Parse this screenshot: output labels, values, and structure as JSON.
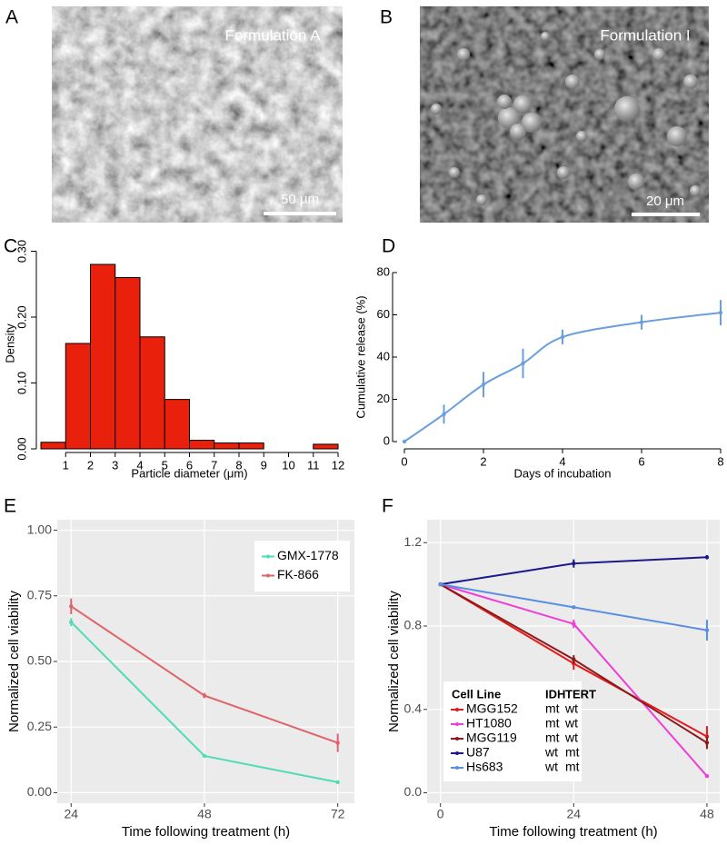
{
  "figures": [
    {
      "panel": "A",
      "label": "Formulation A",
      "scale_bar": "50 μm"
    },
    {
      "panel": "B",
      "label": "Formulation I",
      "scale_bar": "20 μm"
    }
  ],
  "chart_data": [
    {
      "panel": "C",
      "type": "histogram",
      "color": "#e8200c",
      "bins": [
        0,
        1,
        2,
        3,
        4,
        5,
        6,
        7,
        8,
        9,
        10,
        11,
        12
      ],
      "values": [
        0.01,
        0.16,
        0.28,
        0.26,
        0.17,
        0.075,
        0.013,
        0.009,
        0.009,
        0,
        0,
        0.007
      ],
      "xlim": [
        0,
        12
      ],
      "xticks": [
        1,
        2,
        3,
        4,
        5,
        6,
        7,
        8,
        9,
        10,
        11,
        12
      ],
      "ylim": [
        0,
        0.32
      ],
      "yticks": [
        {
          "value": 0,
          "label": "0.00"
        },
        {
          "value": 0.1,
          "label": "0.10"
        },
        {
          "value": 0.2,
          "label": "0.20"
        },
        {
          "value": 0.3,
          "label": "0.30"
        }
      ],
      "xlabel": "Particle diameter (μm)",
      "ylabel": "Density"
    },
    {
      "panel": "D",
      "type": "line",
      "smooth": true,
      "x": [
        0,
        1,
        2,
        3,
        4,
        6,
        8
      ],
      "series": [
        {
          "color": "#6a9fdc",
          "values": [
            0,
            13,
            27,
            37,
            49.5,
            56.5,
            61
          ],
          "errors": [
            0,
            4.5,
            6,
            7,
            3.5,
            3.5,
            6
          ]
        }
      ],
      "xlim": [
        0,
        8
      ],
      "xticks": [
        0,
        2,
        4,
        6,
        8
      ],
      "ylim": [
        0,
        80
      ],
      "yticks": [
        0,
        20,
        40,
        60,
        80
      ],
      "xlabel": "Days of incubation",
      "ylabel": "Cumulative release (%)"
    },
    {
      "panel": "E",
      "type": "line",
      "grid": true,
      "background": "#ebebeb",
      "legend": "top-right",
      "x": [
        24,
        48,
        72
      ],
      "series": [
        {
          "name": "GMX-1778",
          "color": "#4fdcb4",
          "values": [
            0.65,
            0.14,
            0.04
          ],
          "errors": [
            0.015,
            0,
            0.005
          ]
        },
        {
          "name": "FK-866",
          "color": "#e0636b",
          "values": [
            0.71,
            0.37,
            0.19
          ],
          "errors": [
            0.03,
            0.01,
            0.035
          ]
        }
      ],
      "xlim": [
        21.5,
        75
      ],
      "xticks": [
        24,
        48,
        72
      ],
      "ylim": [
        -0.04,
        1.04
      ],
      "yticks": [
        {
          "value": 0,
          "label": "0.00"
        },
        {
          "value": 0.25,
          "label": "0.25"
        },
        {
          "value": 0.5,
          "label": "0.50"
        },
        {
          "value": 0.75,
          "label": "0.75"
        },
        {
          "value": 1,
          "label": "1.00"
        }
      ],
      "xlabel": "Time following treatment (h)",
      "ylabel": "Normalized cell viability"
    },
    {
      "panel": "F",
      "type": "line",
      "grid": true,
      "background": "#ebebeb",
      "legend": "bottom-left",
      "legend_headers": [
        "Cell Line",
        "IDH",
        "TERT"
      ],
      "x": [
        0,
        24,
        48
      ],
      "series": [
        {
          "name": "MGG152",
          "idh": "mt",
          "tert": "wt",
          "color": "#e41a1c",
          "values": [
            1,
            0.62,
            0.27
          ],
          "errors": [
            0,
            0.03,
            0.05
          ]
        },
        {
          "name": "HT1080",
          "idh": "mt",
          "tert": "wt",
          "color": "#f03cd8",
          "values": [
            1,
            0.81,
            0.08
          ],
          "errors": [
            0,
            0.02,
            0
          ]
        },
        {
          "name": "MGG119",
          "idh": "mt",
          "tert": "wt",
          "color": "#8b1a1a",
          "values": [
            1,
            0.64,
            0.24
          ],
          "errors": [
            0,
            0.02,
            0.03
          ]
        },
        {
          "name": "U87",
          "idh": "wt",
          "tert": "mt",
          "color": "#1a1a8c",
          "values": [
            1,
            1.1,
            1.13
          ],
          "errors": [
            0,
            0.02,
            0.01
          ]
        },
        {
          "name": "Hs683",
          "idh": "wt",
          "tert": "mt",
          "color": "#5a8ee0",
          "values": [
            1,
            0.89,
            0.78
          ],
          "errors": [
            0,
            null,
            0.05
          ]
        }
      ],
      "xlim": [
        -2.4,
        50.3
      ],
      "xticks": [
        0,
        24,
        48
      ],
      "ylim": [
        -0.05,
        1.31
      ],
      "yticks": [
        {
          "value": 0,
          "label": "0.0"
        },
        {
          "value": 0.4,
          "label": "0.4"
        },
        {
          "value": 0.8,
          "label": "0.8"
        },
        {
          "value": 1.2,
          "label": "1.2"
        }
      ],
      "xlabel": "Time following treatment (h)",
      "ylabel": "Normalized cell viability"
    }
  ]
}
